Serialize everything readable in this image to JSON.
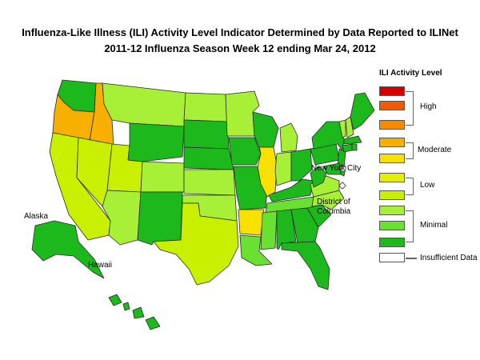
{
  "title_line1": "Influenza-Like Illness (ILI) Activity Level Indicator Determined by Data Reported to ILINet",
  "title_line2": "2011-12  Influenza Season Week  12 ending Mar 24, 2012",
  "legend": {
    "title": "ILI Activity Level",
    "high": "High",
    "moderate": "Moderate",
    "low": "Low",
    "minimal": "Minimal",
    "insufficient": "Insufficient Data",
    "colors": [
      "#d40000",
      "#f05a00",
      "#f88a00",
      "#f8b000",
      "#f8e000",
      "#e2f000",
      "#c8f000",
      "#a8f038",
      "#6ae030",
      "#1cb81c",
      "#ffffff"
    ]
  },
  "map_labels": {
    "alaska": "Alaska",
    "hawaii": "Hawaii",
    "nyc": "New York City",
    "dc_line1": "District of",
    "dc_line2": "Columbia"
  }
}
